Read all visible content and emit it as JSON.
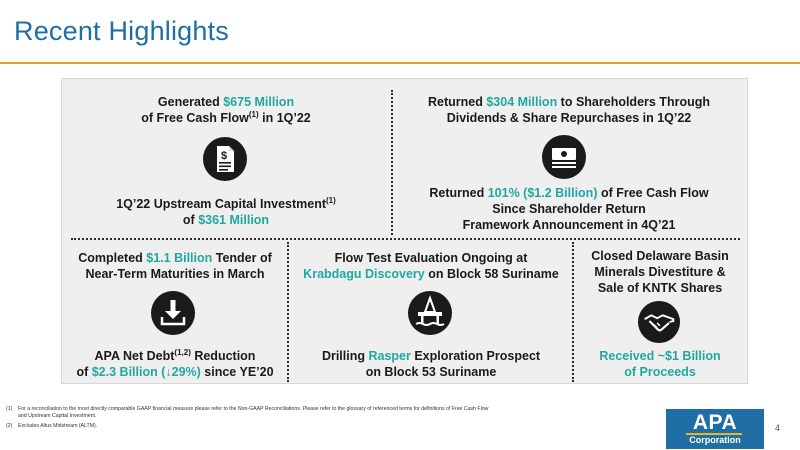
{
  "slide": {
    "title": "Recent Highlights",
    "page_number": "4"
  },
  "top_left": {
    "l1_a": "Generated ",
    "l1_hl": "$675 Million",
    "l2_a": "of Free Cash Flow",
    "l2_sup": "(1)",
    "l2_b": " in 1Q’22",
    "l3_a": "1Q’22 Upstream Capital Investment",
    "l3_sup": "(1)",
    "l4_a": "of ",
    "l4_hl": "$361 Million"
  },
  "top_right": {
    "l1_a": "Returned ",
    "l1_hl": "$304 Million",
    "l1_b": " to Shareholders Through",
    "l2": "Dividends & Share Repurchases in 1Q’22",
    "l3_a": "Returned ",
    "l3_hl": "101% ($1.2 Billion)",
    "l3_b": " of Free Cash Flow",
    "l4": "Since Shareholder Return",
    "l5": "Framework Announcement in 4Q’21"
  },
  "bottom_left": {
    "l1_a": "Completed ",
    "l1_hl": "$1.1 Billion",
    "l1_b": " Tender of",
    "l2": "Near-Term Maturities in March",
    "l3_a": "APA Net Debt",
    "l3_sup": "(1,2)",
    "l3_b": " Reduction",
    "l4_a": "of ",
    "l4_hl": "$2.3 Billion (↓29%)",
    "l4_b": " since YE’20"
  },
  "bottom_middle": {
    "l1": "Flow Test Evaluation Ongoing at",
    "l2_hl": "Krabdagu Discovery",
    "l2_b": " on Block 58 Suriname",
    "l3_a": "Drilling ",
    "l3_hl": "Rasper",
    "l3_b": " Exploration Prospect",
    "l4": "on Block 53 Suriname"
  },
  "bottom_right": {
    "l1": "Closed Delaware Basin",
    "l2": "Minerals Divestiture &",
    "l3": "Sale of KNTK Shares",
    "l4_hl": "Received ~$1 Billion",
    "l5_hl": "of Proceeds"
  },
  "footnotes": [
    {
      "num": "(1)",
      "text": "For a reconciliation to the most directly comparable GAAP financial measure please refer to the Non-GAAP Reconciliations. Please refer to the glossary of referenced terms for definitions of Free Cash Flow"
    },
    {
      "num": "",
      "text": "and Upstream Capital Investment."
    },
    {
      "num": "(2)",
      "text": "Excludes Altus Midstream (ALTM)."
    }
  ],
  "logo": {
    "name": "APA",
    "subtitle": "Corporation"
  },
  "colors": {
    "title": "#1f6fa6",
    "accent": "#21a7a0",
    "rule": "#e3a21a",
    "logo_bg": "#1f6fa6"
  },
  "icons": [
    "document-dollar-icon",
    "cash-stack-icon",
    "download-tray-icon",
    "offshore-rig-icon",
    "handshake-icon"
  ]
}
